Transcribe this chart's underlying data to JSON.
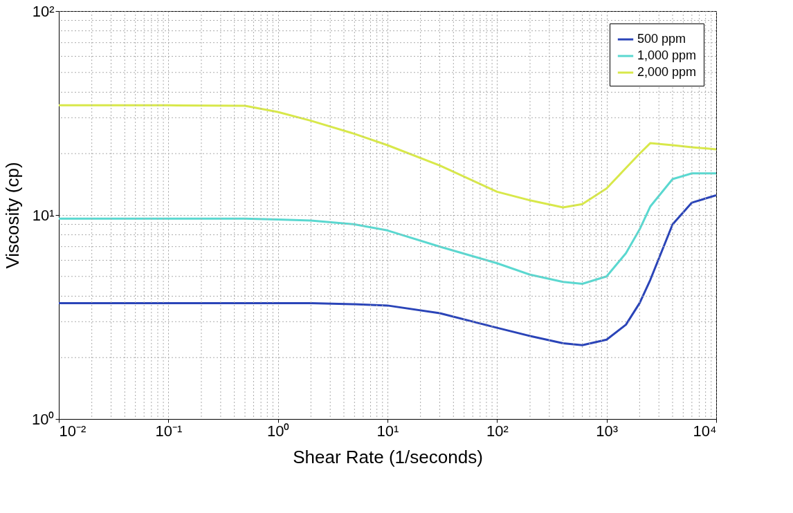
{
  "chart_data": {
    "type": "line",
    "xlabel": "Shear Rate (1/seconds)",
    "ylabel": "Viscosity (cp)",
    "log": "xy",
    "grid": true,
    "legend": "top right",
    "line_style": "solid",
    "marker": "none",
    "xlim": [
      0.01,
      10000
    ],
    "ylim": [
      1,
      100
    ],
    "xticks": [
      {
        "value": 0.01,
        "label": "10⁻²"
      },
      {
        "value": 0.1,
        "label": "10⁻¹"
      },
      {
        "value": 1,
        "label": "10⁰"
      },
      {
        "value": 10,
        "label": "10¹"
      },
      {
        "value": 100,
        "label": "10²"
      },
      {
        "value": 1000,
        "label": "10³"
      },
      {
        "value": 10000,
        "label": "10⁴"
      }
    ],
    "yticks": [
      {
        "value": 1,
        "label": "10⁰"
      },
      {
        "value": 10,
        "label": "10¹"
      },
      {
        "value": 100,
        "label": "10²"
      }
    ],
    "x": [
      0.01,
      0.1,
      0.5,
      1,
      2,
      5,
      10,
      30,
      100,
      200,
      400,
      600,
      1000,
      1500,
      2000,
      2500,
      4000,
      6000,
      10000
    ],
    "series": [
      {
        "name": "500 ppm",
        "color": "#2a44b8",
        "values": [
          3.7,
          3.7,
          3.7,
          3.7,
          3.7,
          3.65,
          3.6,
          3.3,
          2.8,
          2.55,
          2.35,
          2.3,
          2.45,
          2.9,
          3.7,
          4.8,
          9,
          11.5,
          12.5
        ]
      },
      {
        "name": "1,000 ppm",
        "color": "#5ad8d0",
        "values": [
          9.6,
          9.6,
          9.6,
          9.5,
          9.4,
          9,
          8.4,
          7,
          5.8,
          5.1,
          4.7,
          4.6,
          5,
          6.5,
          8.5,
          11,
          15,
          16,
          16
        ]
      },
      {
        "name": "2,000 ppm",
        "color": "#d8e84a",
        "values": [
          34.5,
          34.5,
          34.3,
          32,
          29,
          25,
          22,
          17.5,
          13,
          11.8,
          10.9,
          11.3,
          13.5,
          17,
          20,
          22.5,
          22,
          21.5,
          21
        ]
      }
    ]
  }
}
